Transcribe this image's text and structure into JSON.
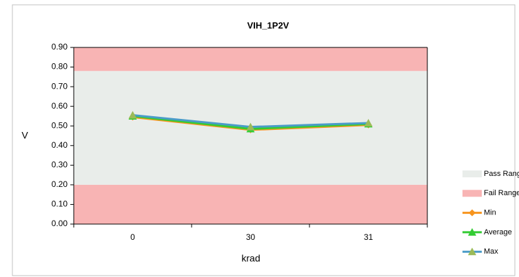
{
  "chart_data": {
    "type": "line",
    "title": "VIH_1P2V",
    "x_label": "krad",
    "y_label": "V",
    "categories": [
      "0",
      "30",
      "31"
    ],
    "ylim": [
      0,
      0.9
    ],
    "yticks": [
      {
        "value": 0,
        "label": "0.00"
      },
      {
        "value": 0.1,
        "label": "0.10"
      },
      {
        "value": 0.2,
        "label": "0.20"
      },
      {
        "value": 0.3,
        "label": "0.30"
      },
      {
        "value": 0.4,
        "label": "0.40"
      },
      {
        "value": 0.5,
        "label": "0.50"
      },
      {
        "value": 0.6,
        "label": "0.60"
      },
      {
        "value": 0.7,
        "label": "0.70"
      },
      {
        "value": 0.8,
        "label": "0.80"
      },
      {
        "value": 0.9,
        "label": "0.90"
      }
    ],
    "bands": [
      {
        "name": "Pass Range",
        "color": "#e9edea",
        "ranges": [
          [
            0.2,
            0.78
          ]
        ]
      },
      {
        "name": "Fail Range",
        "color": "#f8b4b4",
        "ranges": [
          [
            0,
            0.2
          ],
          [
            0.78,
            0.9
          ]
        ]
      }
    ],
    "series": [
      {
        "name": "Min",
        "color": "#f7941d",
        "marker": "diamond",
        "marker_color": "#f7941d",
        "values": [
          0.545,
          0.48,
          0.505
        ]
      },
      {
        "name": "Average",
        "color": "#33cc33",
        "marker": "triangle",
        "marker_color": "#33cc33",
        "values": [
          0.55,
          0.485,
          0.51
        ]
      },
      {
        "name": "Max",
        "color": "#4a9cc8",
        "marker": "triangle",
        "marker_color": "#9bbb59",
        "values": [
          0.555,
          0.495,
          0.515
        ]
      }
    ],
    "legend": "right"
  }
}
